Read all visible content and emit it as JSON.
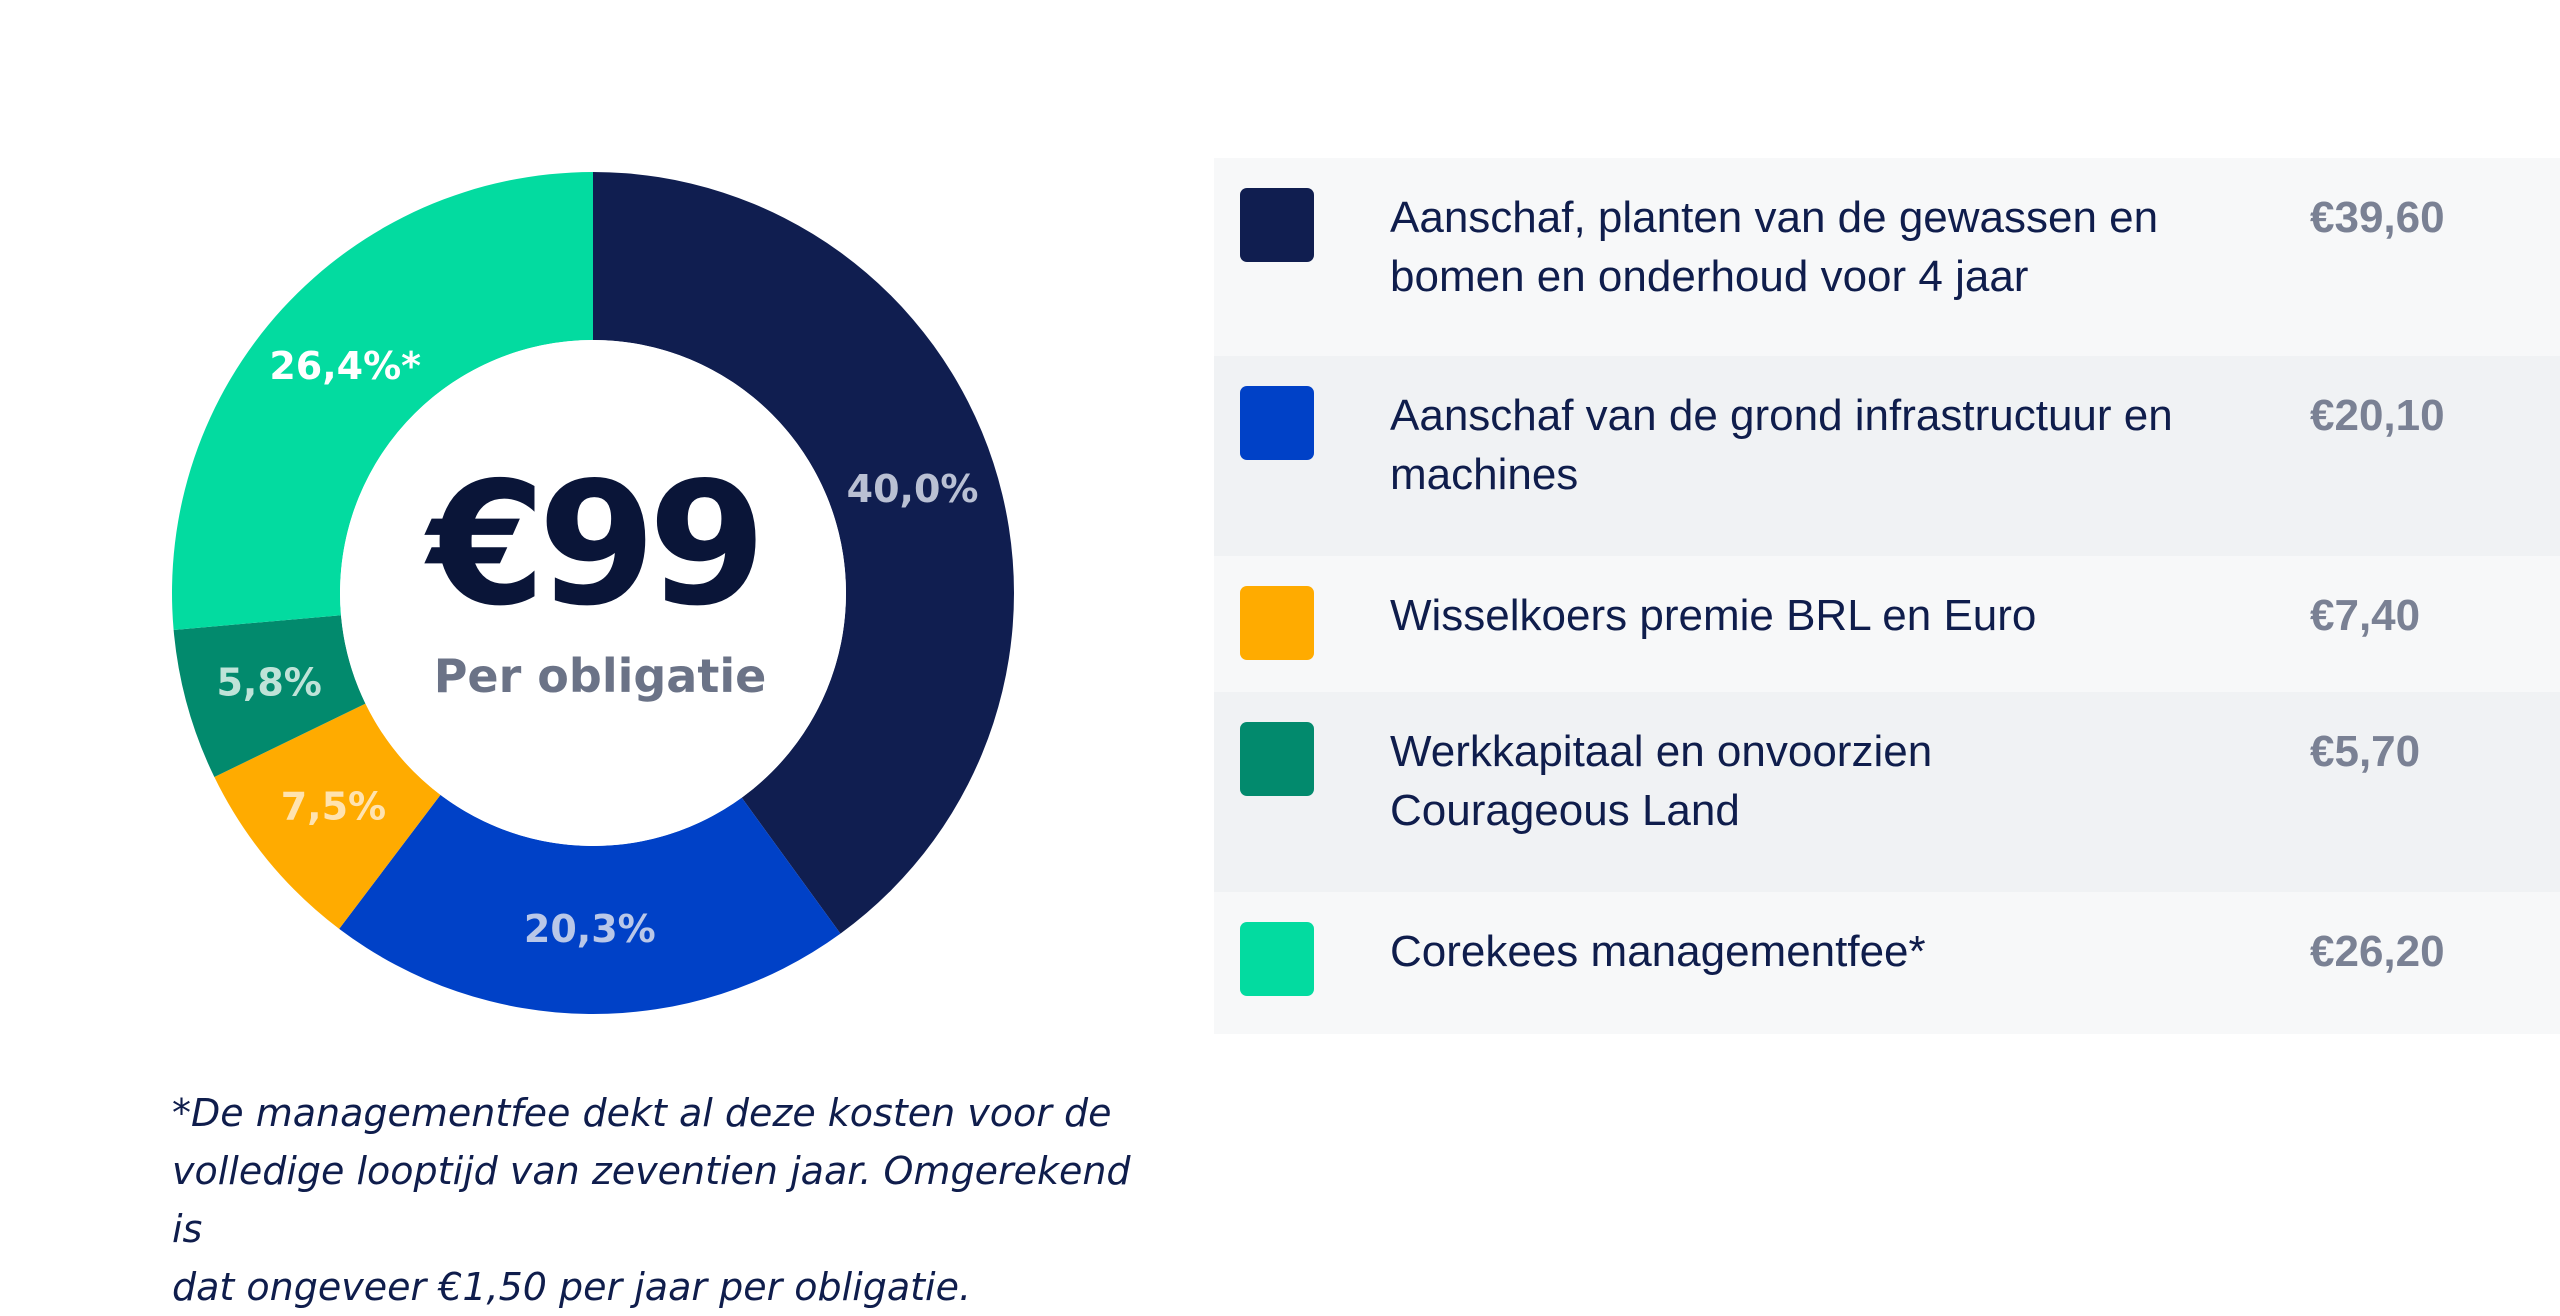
{
  "chart_data": {
    "type": "pie",
    "center_amount": "€99",
    "center_subtitle": "Per obligatie",
    "categories": [
      "Aanschaf, planten van de gewassen en bomen en onderhoud voor 4 jaar",
      "Aanschaf van de grond infrastructuur en machines",
      "Wisselkoers premie BRL en Euro",
      "Werkkapitaal en onvoorzien Courageous Land",
      "Corekees managementfee*"
    ],
    "values": [
      40.0,
      20.3,
      7.5,
      5.8,
      26.4
    ],
    "slice_labels": [
      "40,0%",
      "20,3%",
      "7,5%",
      "5,8%",
      "26,4%*"
    ],
    "amounts": [
      "€39,60",
      "€20,10",
      "€7,40",
      "€5,70",
      "€26,20"
    ],
    "colors": [
      "#101e50",
      "#0041c7",
      "#ffab00",
      "#028a6d",
      "#03dba0"
    ],
    "label_colors": [
      "#b9c0d3",
      "#b9c7e8",
      "#ffe3b0",
      "#bfe3d8",
      "#ffffff"
    ]
  },
  "legend": {
    "rows": [
      {
        "lines": [
          "Aanschaf, planten van de gewassen en",
          "bomen en onderhoud voor 4 jaar"
        ],
        "amount": "€39,60"
      },
      {
        "lines": [
          "Aanschaf van de grond infrastructuur en",
          "machines"
        ],
        "amount": "€20,10"
      },
      {
        "lines": [
          "Wisselkoers premie BRL en Euro"
        ],
        "amount": "€7,40"
      },
      {
        "lines": [
          "Werkkapitaal en onvoorzien",
          "Courageous Land"
        ],
        "amount": "€5,70"
      },
      {
        "lines": [
          "Corekees managementfee*"
        ],
        "amount": "€26,20"
      }
    ]
  },
  "footnote": {
    "lines": [
      "*De managementfee dekt al deze kosten voor de",
      "volledige looptijd van zeventien jaar. Omgerekend is",
      "dat ongeveer €1,50 per jaar per obligatie."
    ]
  },
  "colors": {
    "text_dark": "#0f1d4c",
    "text_grey": "#7a8194",
    "row_light": "#f7f8f9",
    "row_dark": "#f0f2f4"
  }
}
